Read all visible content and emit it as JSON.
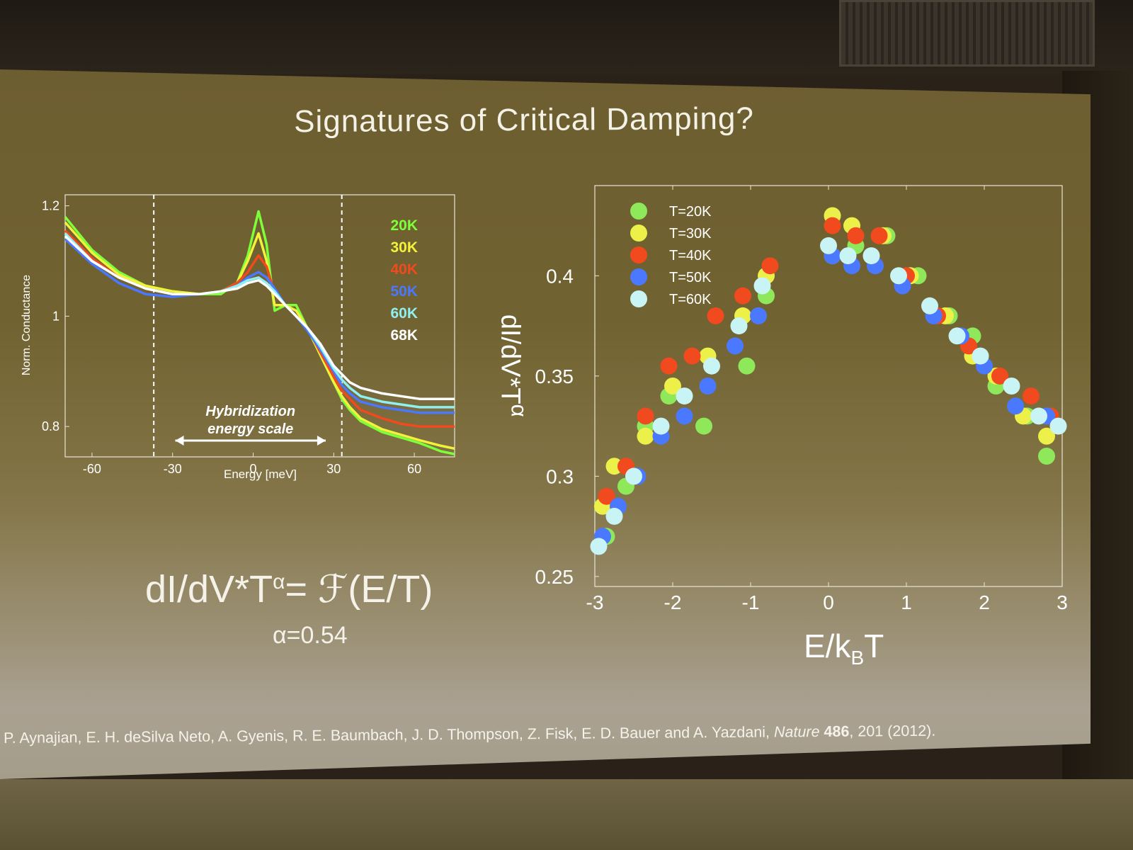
{
  "slide": {
    "title": "Signatures of Critical Damping?",
    "formula_lhs": "dI/dV*T",
    "formula_exp": "α",
    "formula_rhs": "= ℱ(E/T)",
    "alpha": "α=0.54",
    "citation_authors": "P. Aynajian, E. H. deSilva Neto, A. Gyenis, R. E. Baumbach, J. D. Thompson, Z. Fisk, E. D. Bauer and A. Yazdani, ",
    "citation_journal": "Nature",
    "citation_volume": "486",
    "citation_tail": ", 201 (2012)."
  },
  "chart_data": [
    {
      "type": "line",
      "xlabel": "Energy [meV]",
      "ylabel": "Norm. Conductance",
      "xlim": [
        -70,
        75
      ],
      "ylim": [
        0.745,
        1.22
      ],
      "xticks": [
        -60,
        -30,
        0,
        30,
        60
      ],
      "yticks": [
        0.8,
        1,
        1.2
      ],
      "ytick_labels": [
        "0.8",
        "1",
        "1.2"
      ],
      "vlines": [
        -37,
        33
      ],
      "annotation": [
        "Hybridization",
        "energy scale"
      ],
      "annotation_arrow": [
        -29,
        27
      ],
      "x": [
        -70,
        -60,
        -50,
        -40,
        -30,
        -20,
        -12,
        -6,
        -2,
        2,
        5,
        8,
        12,
        16,
        20,
        25,
        30,
        33,
        36,
        40,
        48,
        55,
        62,
        70,
        75
      ],
      "series": [
        {
          "name": "20K",
          "color": "#7dff3a",
          "values": [
            1.18,
            1.12,
            1.08,
            1.055,
            1.045,
            1.04,
            1.04,
            1.06,
            1.11,
            1.19,
            1.13,
            1.01,
            1.02,
            1.02,
            0.98,
            0.93,
            0.88,
            0.85,
            0.83,
            0.81,
            0.79,
            0.78,
            0.77,
            0.755,
            0.75
          ]
        },
        {
          "name": "30K",
          "color": "#f2f23a",
          "values": [
            1.17,
            1.115,
            1.075,
            1.055,
            1.045,
            1.04,
            1.045,
            1.06,
            1.1,
            1.15,
            1.1,
            1.02,
            1.02,
            1.01,
            0.98,
            0.93,
            0.88,
            0.855,
            0.835,
            0.815,
            0.795,
            0.785,
            0.775,
            0.765,
            0.76
          ]
        },
        {
          "name": "40K",
          "color": "#f04a1e",
          "values": [
            1.155,
            1.105,
            1.07,
            1.05,
            1.04,
            1.04,
            1.045,
            1.06,
            1.08,
            1.11,
            1.09,
            1.04,
            1.02,
            1.0,
            0.98,
            0.935,
            0.89,
            0.865,
            0.85,
            0.83,
            0.815,
            0.805,
            0.8,
            0.8,
            0.8
          ]
        },
        {
          "name": "50K",
          "color": "#4a78ff",
          "values": [
            1.14,
            1.095,
            1.06,
            1.04,
            1.035,
            1.04,
            1.045,
            1.055,
            1.07,
            1.08,
            1.07,
            1.05,
            1.02,
            1.0,
            0.975,
            0.94,
            0.9,
            0.875,
            0.86,
            0.845,
            0.835,
            0.83,
            0.825,
            0.825,
            0.825
          ]
        },
        {
          "name": "60K",
          "color": "#8ef0f0",
          "values": [
            1.15,
            1.1,
            1.07,
            1.05,
            1.04,
            1.04,
            1.045,
            1.055,
            1.065,
            1.07,
            1.06,
            1.045,
            1.02,
            1.0,
            0.98,
            0.945,
            0.905,
            0.885,
            0.87,
            0.855,
            0.845,
            0.84,
            0.835,
            0.835,
            0.835
          ]
        },
        {
          "name": "68K",
          "color": "#ffffff",
          "values": [
            1.145,
            1.1,
            1.07,
            1.05,
            1.04,
            1.04,
            1.045,
            1.05,
            1.06,
            1.065,
            1.055,
            1.04,
            1.02,
            1.0,
            0.98,
            0.95,
            0.91,
            0.895,
            0.88,
            0.87,
            0.86,
            0.855,
            0.85,
            0.85,
            0.85
          ]
        }
      ]
    },
    {
      "type": "scatter",
      "xlabel": "E/k",
      "xlabel_sub": "B",
      "xlabel_tail": "T",
      "ylabel": "dI/dV*T",
      "ylabel_sup": "α",
      "xlim": [
        -3,
        3
      ],
      "ylim": [
        0.245,
        0.445
      ],
      "xticks": [
        -3,
        -2,
        -1,
        0,
        1,
        2,
        3
      ],
      "yticks": [
        0.25,
        0.3,
        0.35,
        0.4
      ],
      "ytick_labels": [
        "0.25",
        "0.3",
        "0.35",
        "0.4"
      ],
      "legend_position": "top-left",
      "series": [
        {
          "name": "T=20K",
          "color": "#8ee85a",
          "points": [
            [
              -2.85,
              0.27
            ],
            [
              -2.6,
              0.295
            ],
            [
              -2.35,
              0.325
            ],
            [
              -2.05,
              0.34
            ],
            [
              -1.6,
              0.325
            ],
            [
              -1.05,
              0.355
            ],
            [
              -0.8,
              0.39
            ],
            [
              0.05,
              0.41
            ],
            [
              0.35,
              0.415
            ],
            [
              0.75,
              0.42
            ],
            [
              1.15,
              0.4
            ],
            [
              1.55,
              0.38
            ],
            [
              1.85,
              0.37
            ],
            [
              2.15,
              0.345
            ],
            [
              2.55,
              0.33
            ],
            [
              2.8,
              0.31
            ]
          ]
        },
        {
          "name": "T=30K",
          "color": "#eef04a",
          "points": [
            [
              -2.9,
              0.285
            ],
            [
              -2.75,
              0.305
            ],
            [
              -2.35,
              0.32
            ],
            [
              -2.0,
              0.345
            ],
            [
              -1.55,
              0.36
            ],
            [
              -1.1,
              0.38
            ],
            [
              -0.8,
              0.4
            ],
            [
              0.05,
              0.43
            ],
            [
              0.3,
              0.425
            ],
            [
              0.7,
              0.42
            ],
            [
              1.05,
              0.4
            ],
            [
              1.5,
              0.38
            ],
            [
              1.85,
              0.36
            ],
            [
              2.15,
              0.35
            ],
            [
              2.5,
              0.33
            ],
            [
              2.8,
              0.32
            ]
          ]
        },
        {
          "name": "T=40K",
          "color": "#f04a1e",
          "points": [
            [
              -2.85,
              0.29
            ],
            [
              -2.6,
              0.305
            ],
            [
              -2.35,
              0.33
            ],
            [
              -2.05,
              0.355
            ],
            [
              -1.75,
              0.36
            ],
            [
              -1.45,
              0.38
            ],
            [
              -1.1,
              0.39
            ],
            [
              -0.75,
              0.405
            ],
            [
              0.05,
              0.425
            ],
            [
              0.35,
              0.42
            ],
            [
              0.65,
              0.42
            ],
            [
              1.0,
              0.4
            ],
            [
              1.4,
              0.38
            ],
            [
              1.8,
              0.365
            ],
            [
              2.2,
              0.35
            ],
            [
              2.6,
              0.34
            ],
            [
              2.85,
              0.33
            ]
          ]
        },
        {
          "name": "T=50K",
          "color": "#4a78ff",
          "points": [
            [
              -2.9,
              0.27
            ],
            [
              -2.7,
              0.285
            ],
            [
              -2.45,
              0.3
            ],
            [
              -2.15,
              0.32
            ],
            [
              -1.85,
              0.33
            ],
            [
              -1.55,
              0.345
            ],
            [
              -1.2,
              0.365
            ],
            [
              -0.9,
              0.38
            ],
            [
              0.05,
              0.41
            ],
            [
              0.3,
              0.405
            ],
            [
              0.6,
              0.405
            ],
            [
              0.95,
              0.395
            ],
            [
              1.35,
              0.38
            ],
            [
              1.7,
              0.37
            ],
            [
              2.0,
              0.355
            ],
            [
              2.4,
              0.335
            ],
            [
              2.8,
              0.33
            ]
          ]
        },
        {
          "name": "T=60K",
          "color": "#c8f4f6",
          "points": [
            [
              -2.95,
              0.265
            ],
            [
              -2.75,
              0.28
            ],
            [
              -2.5,
              0.3
            ],
            [
              -2.15,
              0.325
            ],
            [
              -1.85,
              0.34
            ],
            [
              -1.5,
              0.355
            ],
            [
              -1.15,
              0.375
            ],
            [
              -0.85,
              0.395
            ],
            [
              0.0,
              0.415
            ],
            [
              0.25,
              0.41
            ],
            [
              0.55,
              0.41
            ],
            [
              0.9,
              0.4
            ],
            [
              1.3,
              0.385
            ],
            [
              1.65,
              0.37
            ],
            [
              1.95,
              0.36
            ],
            [
              2.35,
              0.345
            ],
            [
              2.7,
              0.33
            ],
            [
              2.95,
              0.325
            ]
          ]
        }
      ]
    }
  ]
}
